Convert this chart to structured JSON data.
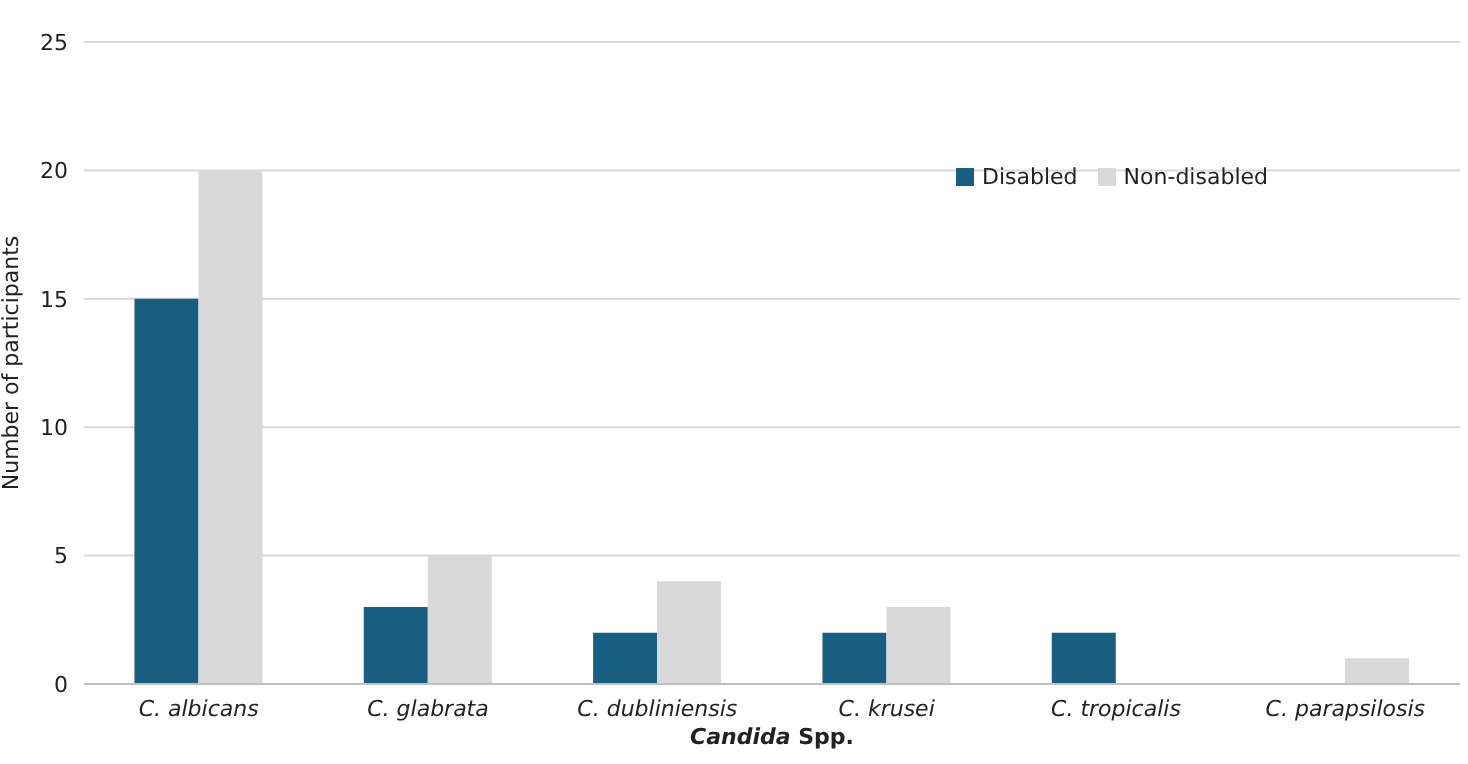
{
  "chart_data": {
    "type": "bar",
    "xlabel": "Candida Spp.",
    "ylabel": "Number of participants",
    "categories": [
      "C. albicans",
      "C. glabrata",
      "C. dubliniensis",
      "C. krusei",
      "C. tropicalis",
      "C. parapsilosis"
    ],
    "series": [
      {
        "name": "Disabled",
        "color": "#175e80",
        "values": [
          15,
          3,
          2,
          2,
          2,
          0
        ]
      },
      {
        "name": "Non-disabled",
        "color": "#d9d9d9",
        "values": [
          20,
          5,
          4,
          3,
          0,
          1
        ]
      }
    ],
    "ylim": [
      0,
      25
    ],
    "yticks": [
      0,
      5,
      10,
      15,
      20,
      25
    ],
    "grid": "y",
    "legend": "top right"
  }
}
